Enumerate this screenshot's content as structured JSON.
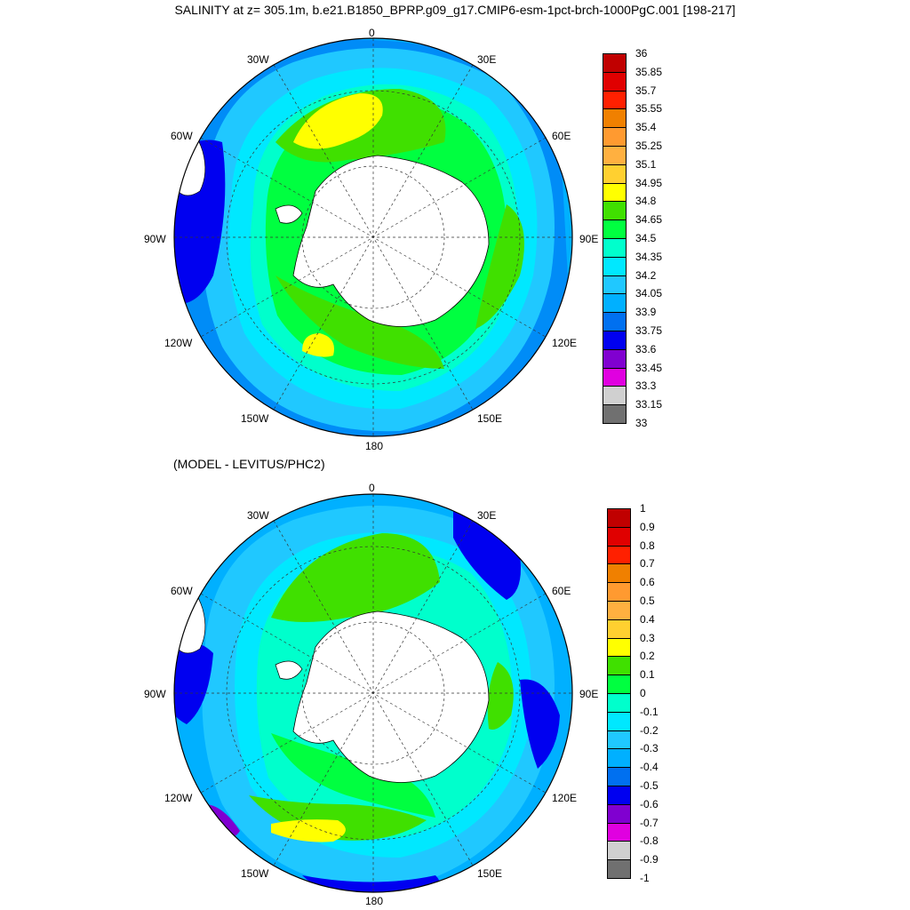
{
  "title": "SALINITY at z= 305.1m, b.e21.B1850_BPRP.g09_g17.CMIP6-esm-1pct-brch-1000PgC.001 [198-217]",
  "subtitle": "(MODEL - LEVITUS/PHC2)",
  "longitude_labels": [
    "0",
    "30E",
    "60E",
    "90E",
    "120E",
    "150E",
    "180",
    "150W",
    "120W",
    "90W",
    "60W",
    "30W"
  ],
  "panels": [
    {
      "name": "salinity",
      "colorbar": {
        "levels": [
          "36",
          "35.85",
          "35.7",
          "35.55",
          "35.4",
          "35.25",
          "35.1",
          "34.95",
          "34.8",
          "34.65",
          "34.5",
          "34.35",
          "34.2",
          "34.05",
          "33.9",
          "33.75",
          "33.6",
          "33.45",
          "33.3",
          "33.15",
          "33"
        ],
        "colors": [
          "#c00000",
          "#e00000",
          "#ff2000",
          "#f08000",
          "#ff9a30",
          "#ffb040",
          "#ffd030",
          "#ffff00",
          "#40e000",
          "#00ff40",
          "#00ffcc",
          "#00e8ff",
          "#20c8ff",
          "#00b0ff",
          "#0070f0",
          "#0000f0",
          "#8000d0",
          "#e000e0",
          "#d0d0d0",
          "#707070"
        ]
      }
    },
    {
      "name": "difference",
      "colorbar": {
        "levels": [
          "1",
          "0.9",
          "0.8",
          "0.7",
          "0.6",
          "0.5",
          "0.4",
          "0.3",
          "0.2",
          "0.1",
          "0",
          "-0.1",
          "-0.2",
          "-0.3",
          "-0.4",
          "-0.5",
          "-0.6",
          "-0.7",
          "-0.8",
          "-0.9",
          "-1"
        ],
        "colors": [
          "#c00000",
          "#e00000",
          "#ff2000",
          "#f08000",
          "#ff9a30",
          "#ffb040",
          "#ffd030",
          "#ffff00",
          "#40e000",
          "#00ff40",
          "#00ffcc",
          "#00e8ff",
          "#20c8ff",
          "#00b0ff",
          "#0070f0",
          "#0000f0",
          "#8000d0",
          "#e000e0",
          "#d0d0d0",
          "#707070"
        ]
      }
    }
  ]
}
